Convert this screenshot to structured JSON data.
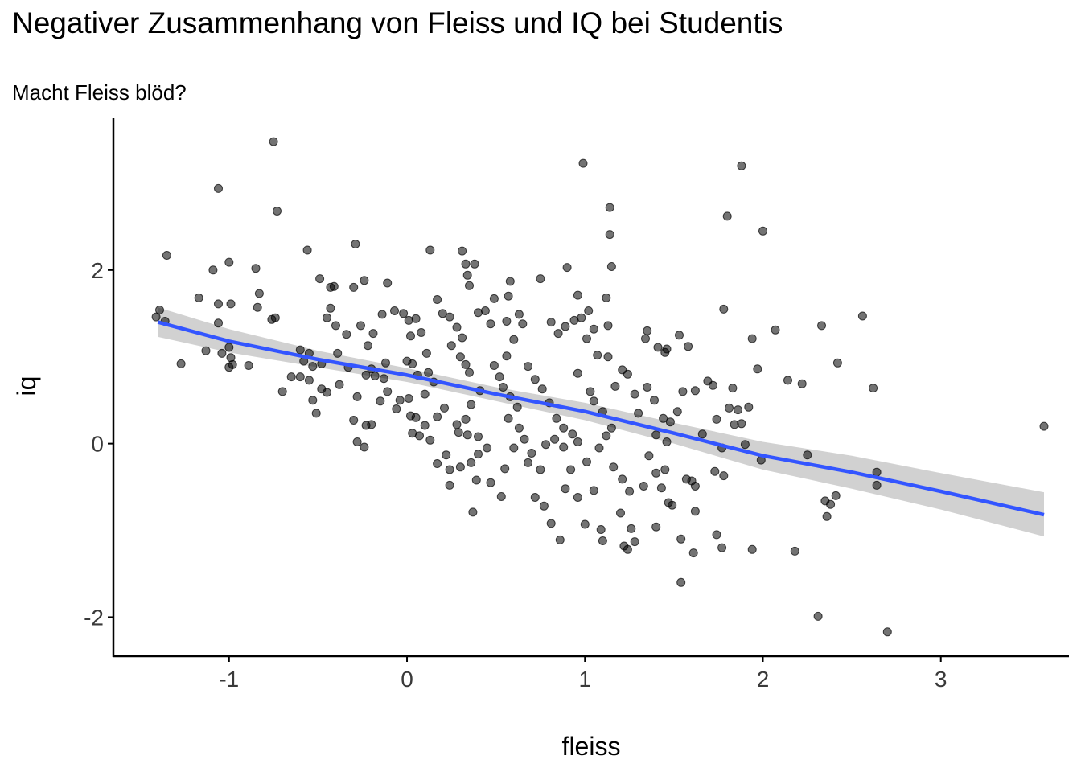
{
  "chart_data": {
    "type": "scatter",
    "title": "Negativer Zusammenhang von Fleiss und IQ bei Studentis",
    "subtitle": "Macht Fleiss blöd?",
    "xlabel": "fleiss",
    "ylabel": "iq",
    "xlim": [
      -1.65,
      3.72
    ],
    "ylim": [
      -2.45,
      3.75
    ],
    "xticks": [
      -1,
      0,
      1,
      2,
      3
    ],
    "yticks": [
      -2,
      0,
      2
    ],
    "grid": false,
    "colors": {
      "points": "#000000",
      "line": "#3355ff",
      "band": "#cccccc"
    },
    "trend": {
      "method": "linear",
      "x": [
        -1.4,
        -1.0,
        -0.5,
        0.0,
        0.5,
        1.0,
        1.5,
        2.0,
        2.5,
        3.0,
        3.58
      ],
      "fit": [
        1.4,
        1.18,
        0.97,
        0.79,
        0.57,
        0.37,
        0.12,
        -0.14,
        -0.33,
        -0.55,
        -0.82
      ],
      "lower": [
        1.23,
        1.05,
        0.88,
        0.71,
        0.49,
        0.27,
        0.0,
        -0.3,
        -0.52,
        -0.76,
        -1.07
      ],
      "upper": [
        1.57,
        1.32,
        1.07,
        0.87,
        0.65,
        0.47,
        0.24,
        0.02,
        -0.14,
        -0.34,
        -0.56
      ]
    },
    "points": [
      [
        -0.75,
        3.48
      ],
      [
        -1.06,
        2.94
      ],
      [
        -0.73,
        2.68
      ],
      [
        -1.35,
        2.17
      ],
      [
        -1.0,
        2.09
      ],
      [
        -0.85,
        2.02
      ],
      [
        -1.09,
        2.0
      ],
      [
        -1.41,
        1.46
      ],
      [
        -1.39,
        1.54
      ],
      [
        -1.36,
        1.41
      ],
      [
        -1.17,
        1.68
      ],
      [
        -1.06,
        1.61
      ],
      [
        -0.99,
        1.61
      ],
      [
        -0.83,
        1.73
      ],
      [
        -0.84,
        1.57
      ],
      [
        -0.74,
        1.45
      ],
      [
        -0.76,
        1.43
      ],
      [
        -1.06,
        1.39
      ],
      [
        -1.13,
        1.07
      ],
      [
        -1.04,
        1.04
      ],
      [
        -1.0,
        1.11
      ],
      [
        -0.99,
        0.99
      ],
      [
        -0.98,
        0.91
      ],
      [
        -1.0,
        0.88
      ],
      [
        -0.89,
        0.9
      ],
      [
        -1.27,
        0.92
      ],
      [
        -0.7,
        0.6
      ],
      [
        -0.65,
        0.77
      ],
      [
        -0.6,
        1.08
      ],
      [
        -0.55,
        1.04
      ],
      [
        -0.56,
        2.23
      ],
      [
        -0.49,
        1.9
      ],
      [
        -0.43,
        1.8
      ],
      [
        -0.41,
        1.81
      ],
      [
        -0.43,
        1.56
      ],
      [
        -0.45,
        1.45
      ],
      [
        -0.4,
        1.36
      ],
      [
        -0.34,
        1.26
      ],
      [
        -0.3,
        1.8
      ],
      [
        -0.24,
        1.88
      ],
      [
        -0.29,
        2.3
      ],
      [
        -0.22,
        1.13
      ],
      [
        -0.26,
        1.36
      ],
      [
        -0.19,
        1.27
      ],
      [
        -0.14,
        1.49
      ],
      [
        -0.12,
        0.93
      ],
      [
        -0.2,
        0.86
      ],
      [
        -0.33,
        0.88
      ],
      [
        -0.39,
        1.04
      ],
      [
        -0.48,
        0.92
      ],
      [
        -0.53,
        0.89
      ],
      [
        -0.58,
        0.95
      ],
      [
        -0.6,
        0.77
      ],
      [
        -0.55,
        0.73
      ],
      [
        -0.48,
        0.63
      ],
      [
        -0.45,
        0.59
      ],
      [
        -0.51,
        0.35
      ],
      [
        -0.53,
        0.5
      ],
      [
        -0.38,
        0.68
      ],
      [
        -0.28,
        0.54
      ],
      [
        -0.3,
        0.27
      ],
      [
        -0.23,
        0.21
      ],
      [
        -0.28,
        0.02
      ],
      [
        -0.24,
        -0.04
      ],
      [
        -0.2,
        0.22
      ],
      [
        -0.15,
        0.49
      ],
      [
        -0.11,
        0.6
      ],
      [
        -0.13,
        0.75
      ],
      [
        -0.18,
        0.78
      ],
      [
        -0.23,
        0.79
      ],
      [
        -0.11,
        1.85
      ],
      [
        -0.07,
        1.53
      ],
      [
        -0.02,
        1.5
      ],
      [
        0.01,
        1.42
      ],
      [
        0.05,
        1.44
      ],
      [
        0.02,
        1.24
      ],
      [
        0.08,
        1.28
      ],
      [
        0.11,
        1.04
      ],
      [
        0.03,
        0.92
      ],
      [
        0.0,
        0.95
      ],
      [
        0.06,
        0.79
      ],
      [
        0.12,
        0.82
      ],
      [
        0.15,
        0.71
      ],
      [
        0.1,
        0.57
      ],
      [
        0.01,
        0.52
      ],
      [
        -0.04,
        0.5
      ],
      [
        -0.06,
        0.4
      ],
      [
        0.02,
        0.32
      ],
      [
        0.05,
        0.3
      ],
      [
        0.1,
        0.21
      ],
      [
        0.07,
        0.09
      ],
      [
        0.03,
        0.12
      ],
      [
        0.13,
        0.04
      ],
      [
        0.17,
        0.31
      ],
      [
        0.21,
        0.41
      ],
      [
        0.17,
        1.66
      ],
      [
        0.2,
        1.5
      ],
      [
        0.24,
        1.46
      ],
      [
        0.28,
        1.34
      ],
      [
        0.31,
        1.22
      ],
      [
        0.25,
        1.13
      ],
      [
        0.3,
        1.0
      ],
      [
        0.33,
        0.91
      ],
      [
        0.35,
        0.82
      ],
      [
        0.41,
        0.61
      ],
      [
        0.36,
        0.45
      ],
      [
        0.33,
        0.28
      ],
      [
        0.28,
        0.22
      ],
      [
        0.29,
        0.13
      ],
      [
        0.34,
        0.1
      ],
      [
        0.4,
        0.08
      ],
      [
        0.45,
        -0.05
      ],
      [
        0.4,
        -0.12
      ],
      [
        0.36,
        -0.22
      ],
      [
        0.3,
        -0.27
      ],
      [
        0.24,
        -0.3
      ],
      [
        0.22,
        -0.13
      ],
      [
        0.17,
        -0.23
      ],
      [
        0.24,
        -0.48
      ],
      [
        0.39,
        -0.42
      ],
      [
        0.37,
        -0.79
      ],
      [
        0.47,
        -0.45
      ],
      [
        0.53,
        -0.61
      ],
      [
        0.55,
        -0.29
      ],
      [
        0.6,
        -0.05
      ],
      [
        0.13,
        2.23
      ],
      [
        0.31,
        2.22
      ],
      [
        0.33,
        2.07
      ],
      [
        0.38,
        2.07
      ],
      [
        0.34,
        1.94
      ],
      [
        0.35,
        1.82
      ],
      [
        0.4,
        1.51
      ],
      [
        0.44,
        1.53
      ],
      [
        0.47,
        1.38
      ],
      [
        0.49,
        1.67
      ],
      [
        0.57,
        1.7
      ],
      [
        0.56,
        1.41
      ],
      [
        0.6,
        1.2
      ],
      [
        0.56,
        1.01
      ],
      [
        0.49,
        0.9
      ],
      [
        0.52,
        0.77
      ],
      [
        0.54,
        0.65
      ],
      [
        0.58,
        0.54
      ],
      [
        0.62,
        0.42
      ],
      [
        0.57,
        0.29
      ],
      [
        0.63,
        0.18
      ],
      [
        0.66,
        0.05
      ],
      [
        0.7,
        -0.11
      ],
      [
        0.68,
        -0.22
      ],
      [
        0.75,
        -0.3
      ],
      [
        0.72,
        -0.62
      ],
      [
        0.77,
        -0.72
      ],
      [
        0.81,
        -0.92
      ],
      [
        0.86,
        -1.11
      ],
      [
        0.89,
        -0.52
      ],
      [
        0.92,
        -0.3
      ],
      [
        0.96,
        -0.62
      ],
      [
        1.0,
        -0.93
      ],
      [
        1.05,
        -0.54
      ],
      [
        1.09,
        -0.99
      ],
      [
        0.58,
        1.87
      ],
      [
        0.63,
        1.49
      ],
      [
        0.65,
        1.38
      ],
      [
        0.68,
        0.89
      ],
      [
        0.72,
        0.74
      ],
      [
        0.76,
        0.63
      ],
      [
        0.8,
        0.47
      ],
      [
        0.84,
        0.29
      ],
      [
        0.88,
        0.18
      ],
      [
        0.83,
        0.05
      ],
      [
        0.78,
        -0.01
      ],
      [
        0.88,
        -0.04
      ],
      [
        0.93,
        0.11
      ],
      [
        0.96,
        0.02
      ],
      [
        1.01,
        -0.21
      ],
      [
        0.81,
        1.4
      ],
      [
        0.85,
        1.27
      ],
      [
        0.89,
        1.35
      ],
      [
        0.94,
        1.42
      ],
      [
        0.96,
        1.71
      ],
      [
        0.9,
        2.03
      ],
      [
        0.75,
        1.9
      ],
      [
        0.99,
        3.23
      ],
      [
        1.02,
        1.53
      ],
      [
        1.05,
        1.32
      ],
      [
        0.98,
        1.45
      ],
      [
        1.01,
        1.21
      ],
      [
        1.07,
        1.02
      ],
      [
        1.13,
        1.0
      ],
      [
        0.96,
        0.81
      ],
      [
        1.03,
        0.6
      ],
      [
        1.05,
        0.49
      ],
      [
        1.1,
        0.37
      ],
      [
        1.15,
        0.18
      ],
      [
        1.12,
        0.09
      ],
      [
        1.08,
        -0.05
      ],
      [
        1.16,
        -0.27
      ],
      [
        1.21,
        -0.41
      ],
      [
        1.25,
        -0.55
      ],
      [
        1.2,
        -0.8
      ],
      [
        1.26,
        -0.98
      ],
      [
        1.28,
        -1.13
      ],
      [
        1.22,
        -1.18
      ],
      [
        1.24,
        -1.22
      ],
      [
        1.1,
        -1.12
      ],
      [
        1.14,
        2.72
      ],
      [
        1.14,
        2.41
      ],
      [
        1.15,
        2.04
      ],
      [
        1.12,
        1.68
      ],
      [
        1.13,
        1.36
      ],
      [
        1.17,
        0.66
      ],
      [
        1.21,
        0.85
      ],
      [
        1.24,
        0.8
      ],
      [
        1.28,
        0.57
      ],
      [
        1.3,
        0.35
      ],
      [
        1.35,
        1.3
      ],
      [
        1.34,
        1.21
      ],
      [
        1.41,
        1.11
      ],
      [
        1.46,
        1.09
      ],
      [
        1.45,
        1.05
      ],
      [
        1.35,
        0.65
      ],
      [
        1.39,
        0.5
      ],
      [
        1.44,
        0.29
      ],
      [
        1.48,
        0.25
      ],
      [
        1.52,
        0.37
      ],
      [
        1.4,
        0.1
      ],
      [
        1.46,
        0.02
      ],
      [
        1.36,
        -0.14
      ],
      [
        1.4,
        -0.34
      ],
      [
        1.45,
        -0.3
      ],
      [
        1.33,
        -0.49
      ],
      [
        1.43,
        -0.51
      ],
      [
        1.47,
        -0.68
      ],
      [
        1.49,
        -0.71
      ],
      [
        1.4,
        -0.96
      ],
      [
        1.53,
        1.25
      ],
      [
        1.58,
        1.12
      ],
      [
        1.62,
        0.61
      ],
      [
        1.55,
        0.6
      ],
      [
        1.6,
        -0.43
      ],
      [
        1.57,
        -0.41
      ],
      [
        1.62,
        -0.49
      ],
      [
        1.62,
        -0.78
      ],
      [
        1.54,
        -1.1
      ],
      [
        1.61,
        -1.26
      ],
      [
        1.54,
        -1.6
      ],
      [
        1.69,
        0.72
      ],
      [
        1.72,
        0.67
      ],
      [
        1.74,
        0.28
      ],
      [
        1.66,
        0.11
      ],
      [
        1.77,
        -0.05
      ],
      [
        1.78,
        -0.37
      ],
      [
        1.73,
        -0.32
      ],
      [
        1.74,
        -1.05
      ],
      [
        1.77,
        -1.2
      ],
      [
        1.78,
        1.55
      ],
      [
        1.8,
        2.62
      ],
      [
        1.88,
        3.2
      ],
      [
        1.81,
        0.41
      ],
      [
        1.83,
        0.64
      ],
      [
        1.86,
        0.39
      ],
      [
        1.84,
        0.22
      ],
      [
        1.88,
        0.23
      ],
      [
        1.9,
        -0.01
      ],
      [
        1.92,
        0.42
      ],
      [
        1.94,
        1.21
      ],
      [
        1.97,
        0.86
      ],
      [
        1.99,
        -0.19
      ],
      [
        2.0,
        2.45
      ],
      [
        1.94,
        -1.22
      ],
      [
        2.07,
        1.31
      ],
      [
        2.14,
        0.73
      ],
      [
        2.18,
        -1.24
      ],
      [
        2.22,
        0.69
      ],
      [
        2.25,
        -0.13
      ],
      [
        2.31,
        -1.99
      ],
      [
        2.33,
        1.36
      ],
      [
        2.35,
        -0.66
      ],
      [
        2.36,
        -0.84
      ],
      [
        2.38,
        -0.7
      ],
      [
        2.41,
        -0.6
      ],
      [
        2.42,
        0.93
      ],
      [
        2.56,
        1.47
      ],
      [
        2.62,
        0.64
      ],
      [
        2.64,
        -0.33
      ],
      [
        2.64,
        -0.48
      ],
      [
        2.7,
        -2.17
      ],
      [
        3.58,
        0.2
      ]
    ]
  }
}
